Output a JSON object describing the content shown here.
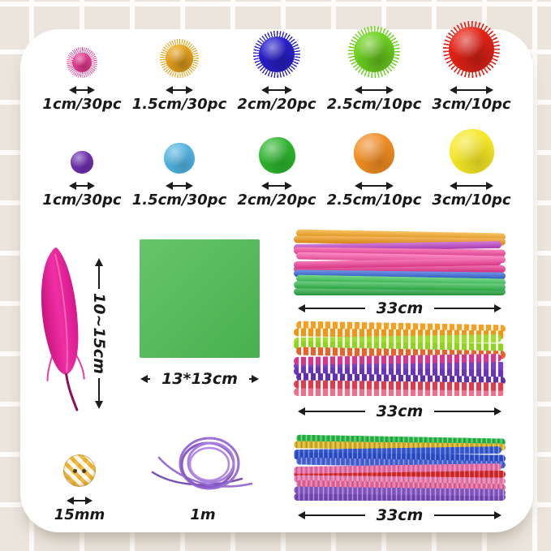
{
  "glitter_pompoms": {
    "items": [
      {
        "color": "#ea3d93",
        "label": "1cm/30pc"
      },
      {
        "color": "#e9a41c",
        "label": "1.5cm/30pc"
      },
      {
        "color": "#2a1fd0",
        "label": "2cm/20pc"
      },
      {
        "color": "#6fd321",
        "label": "2.5cm/10pc"
      },
      {
        "color": "#e82317",
        "label": "3cm/10pc"
      }
    ]
  },
  "plain_pompoms": {
    "items": [
      {
        "color": "#6c2fae",
        "label": "1cm/30pc"
      },
      {
        "color": "#4fb3e0",
        "label": "1.5cm/30pc"
      },
      {
        "color": "#2db52d",
        "label": "2cm/20pc"
      },
      {
        "color": "#f08c22",
        "label": "2.5cm/10pc"
      },
      {
        "color": "#f6e825",
        "label": "3cm/10pc"
      }
    ]
  },
  "feather": {
    "color": "#e01d92",
    "label": "10~15cm"
  },
  "paper": {
    "color": "#4dbb53",
    "label": "13*13cm"
  },
  "bundles": [
    {
      "style": "smooth",
      "label": "33cm",
      "colors": [
        "#f5a51d",
        "#ef9414",
        "#bb3fc4",
        "#f4449c",
        "#fb57a8",
        "#ef3c94",
        "#e7308a",
        "#2f62d6",
        "#38c353",
        "#2eb648",
        "#28a53f"
      ]
    },
    {
      "style": "striped",
      "label": "33cm",
      "colors": [
        "#f5a01e",
        "#ef9714",
        "#9ede2a",
        "#8fd321",
        "#e8622a",
        "#d8358f",
        "#7a3fc8",
        "#6a35bc",
        "#5f2fae",
        "#e03a50",
        "#ef6f8e"
      ]
    },
    {
      "style": "tinsel",
      "label": "33cm",
      "colors": [
        "#2eb84c",
        "#d9b32a",
        "#3a5cd8",
        "#2f50cc",
        "#4a66de",
        "#ee6fa8",
        "#d92b2b",
        "#ef7cb0",
        "#e868a0",
        "#8a5cc8",
        "#7a4cba"
      ]
    }
  ],
  "button": {
    "label": "15mm",
    "color": "#eab02d"
  },
  "cord": {
    "label": "1m",
    "color": "#9a6fd6"
  }
}
